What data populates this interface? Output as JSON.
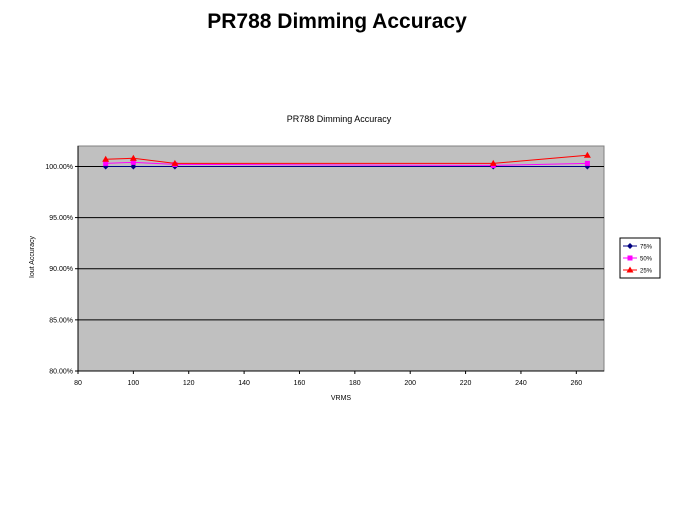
{
  "slide": {
    "title": "PR788 Dimming Accuracy"
  },
  "chart_data": {
    "type": "line",
    "title": "PR788 Dimming Accuracy",
    "xlabel": "VRMS",
    "ylabel": "Iout Accuracy",
    "xlim": [
      80,
      270
    ],
    "ylim": [
      80,
      102
    ],
    "x_ticks": [
      "80",
      "100",
      "120",
      "140",
      "160",
      "180",
      "200",
      "220",
      "240",
      "260"
    ],
    "y_ticks": [
      "80.00%",
      "85.00%",
      "90.00%",
      "95.00%",
      "100.00%"
    ],
    "grid": true,
    "legend_position": "right",
    "plot_background": "#c0c0c0",
    "series": [
      {
        "name": "75%",
        "color": "#000080",
        "marker": "diamond",
        "x": [
          90,
          100,
          115,
          230,
          264
        ],
        "y": [
          100.0,
          100.0,
          100.0,
          100.0,
          100.0
        ]
      },
      {
        "name": "50%",
        "color": "#ff00ff",
        "marker": "square",
        "x": [
          90,
          100,
          115,
          230,
          264
        ],
        "y": [
          100.3,
          100.4,
          100.2,
          100.1,
          100.3
        ]
      },
      {
        "name": "25%",
        "color": "#ff0000",
        "marker": "triangle",
        "x": [
          90,
          100,
          115,
          230,
          264
        ],
        "y": [
          100.7,
          100.8,
          100.3,
          100.3,
          101.1
        ]
      }
    ]
  }
}
